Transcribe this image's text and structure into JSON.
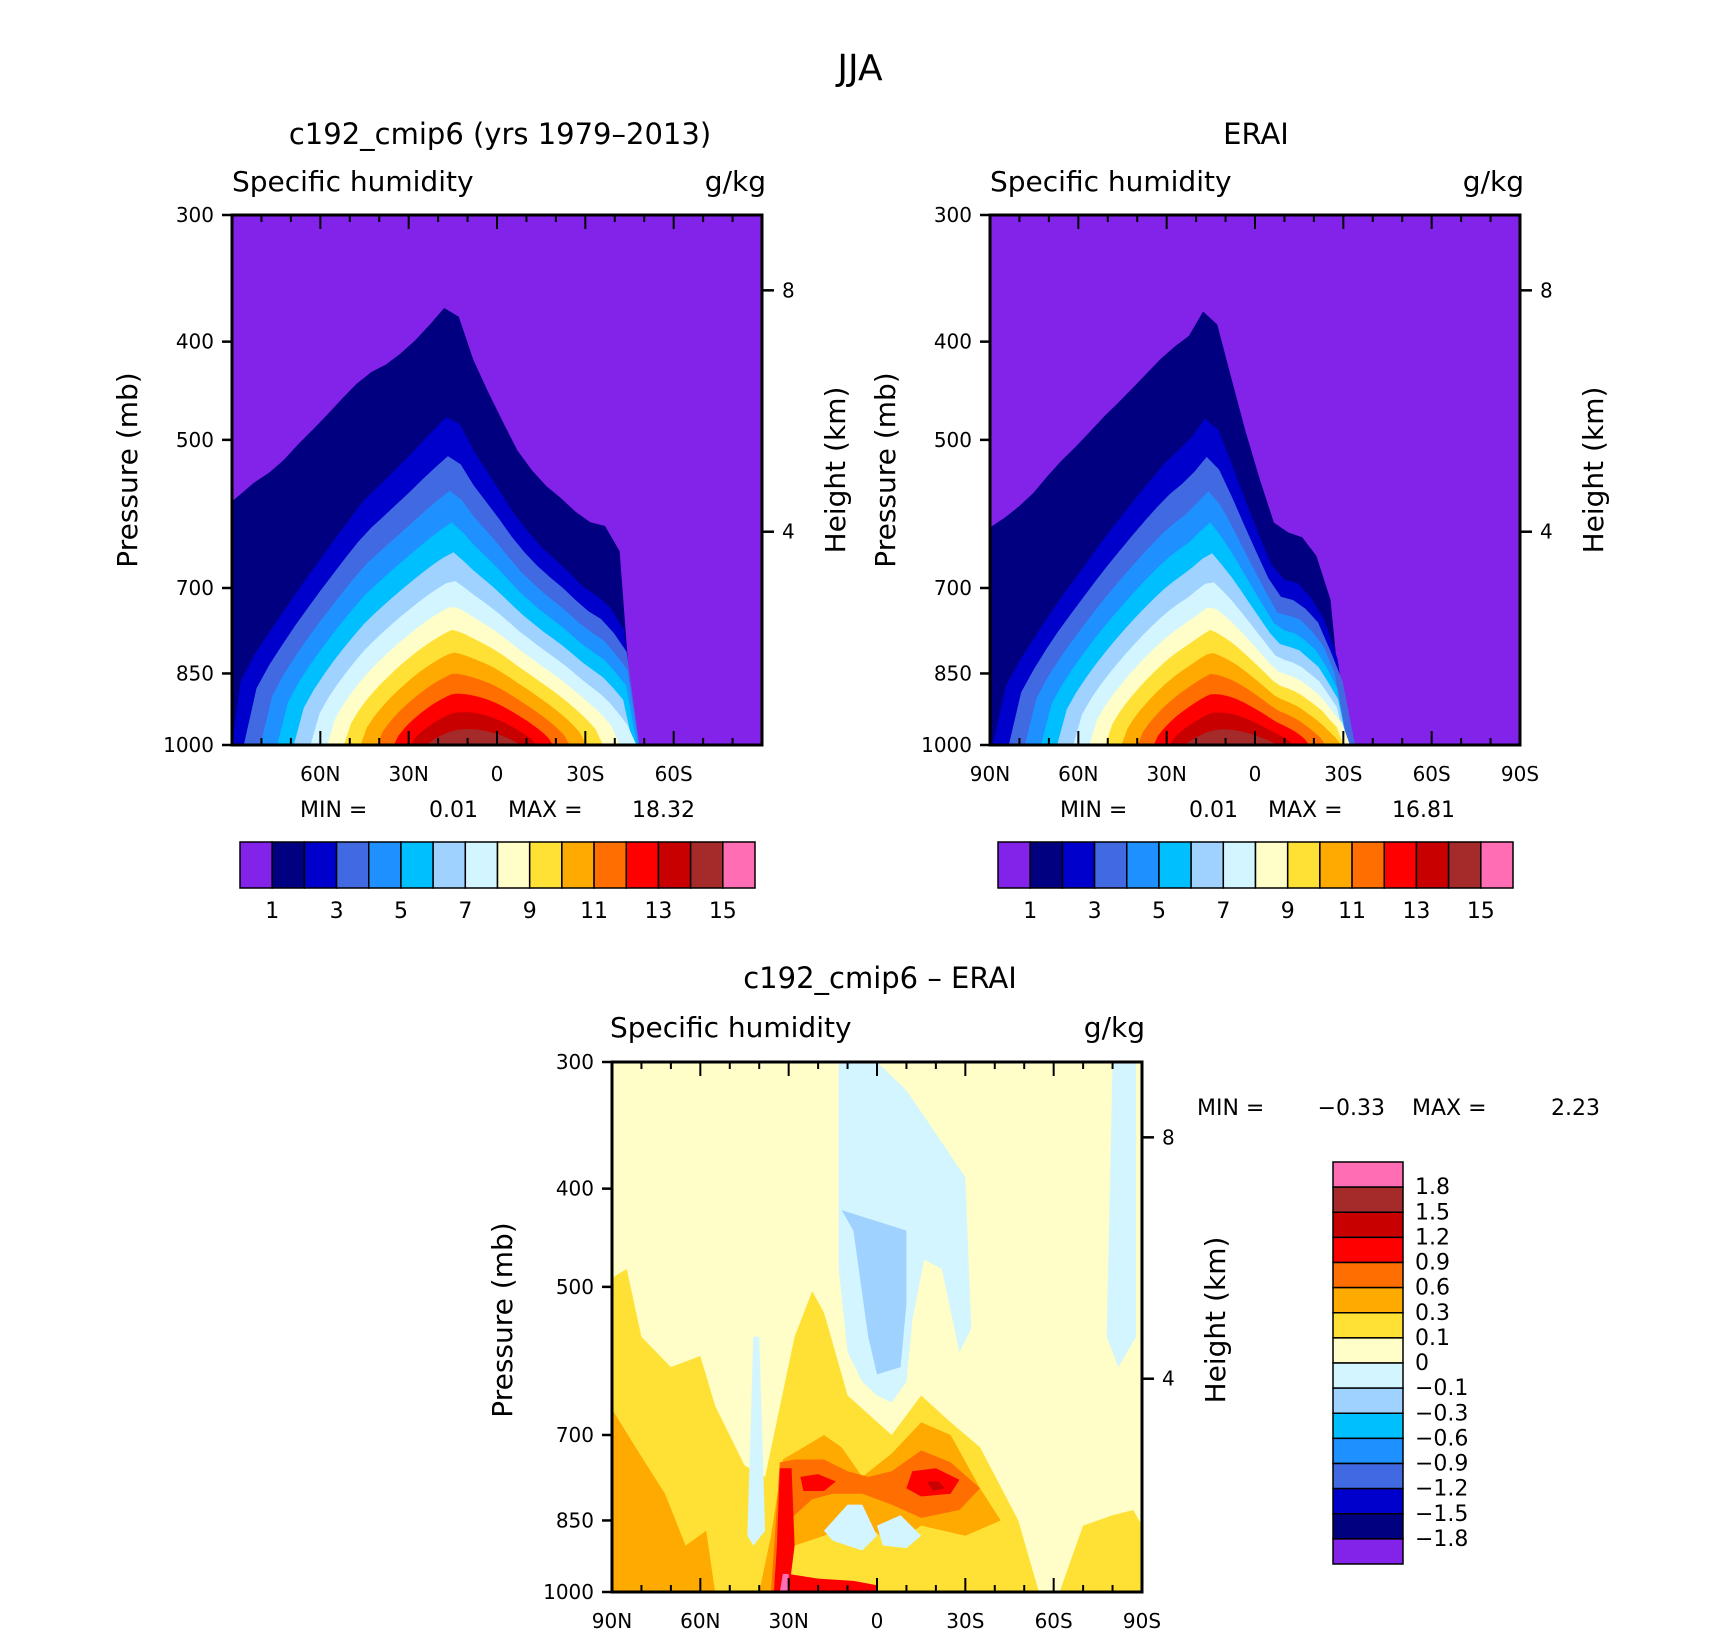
{
  "figure_title": "JJA",
  "chart_data": [
    {
      "id": "model",
      "type": "heatmap",
      "title": "c192_cmip6 (yrs 1979–2013)",
      "left_label": "Specific humidity",
      "right_label": "g/kg",
      "ylabel": "Pressure (mb)",
      "y2label": "Height (km)",
      "yticks": [
        "300",
        "400",
        "500",
        "700",
        "850",
        "1000"
      ],
      "y2ticks": [
        "8",
        "4"
      ],
      "xticks": [
        "60N",
        "30N",
        "0",
        "30S",
        "60S"
      ],
      "xlim": [
        90,
        -90
      ],
      "ylim": [
        1000,
        300
      ],
      "min_text": "MIN =",
      "min_value": "0.01",
      "max_text": "MAX =",
      "max_value": "18.32",
      "levels": [
        1,
        2,
        3,
        4,
        5,
        6,
        7,
        8,
        9,
        10,
        11,
        12,
        13,
        14,
        15
      ],
      "colorbar_labels": [
        "1",
        "3",
        "5",
        "7",
        "9",
        "11",
        "13",
        "15"
      ],
      "colors": [
        "#8322e8",
        "#000080",
        "#0000cd",
        "#4169e1",
        "#1e90ff",
        "#00bfff",
        "#a0d2ff",
        "#d2f5ff",
        "#fffdc8",
        "#ffe136",
        "#ffaa00",
        "#ff6e00",
        "#ff0000",
        "#c80000",
        "#a52a2a",
        "#ff6eb4"
      ],
      "contour_top_mb": [
        575,
        551,
        533,
        505,
        480,
        455,
        432,
        421,
        405,
        384,
        362,
        421,
        467,
        516,
        550,
        573,
        601,
        609,
        672,
        1000,
        1000,
        1000,
        1000,
        1000,
        1000
      ],
      "width_scale": [
        1,
        1,
        1,
        1,
        1,
        1,
        1,
        1,
        1,
        1,
        1,
        1,
        1,
        1,
        1
      ]
    },
    {
      "id": "obs",
      "type": "heatmap",
      "title": "ERAI",
      "left_label": "Specific humidity",
      "right_label": "g/kg",
      "ylabel": "Pressure (mb)",
      "y2label": "Height (km)",
      "yticks": [
        "300",
        "400",
        "500",
        "700",
        "850",
        "1000"
      ],
      "y2ticks": [
        "8",
        "4"
      ],
      "xticks": [
        "90N",
        "60N",
        "30N",
        "0",
        "30S",
        "60S",
        "90S"
      ],
      "xlim": [
        90,
        -90
      ],
      "ylim": [
        1000,
        300
      ],
      "min_text": "MIN =",
      "min_value": "0.01",
      "max_text": "MAX =",
      "max_value": "16.81",
      "levels": [
        1,
        2,
        3,
        4,
        5,
        6,
        7,
        8,
        9,
        10,
        11,
        12,
        13,
        14,
        15
      ],
      "colorbar_labels": [
        "1",
        "3",
        "5",
        "7",
        "9",
        "11",
        "13",
        "15"
      ],
      "colors": [
        "#8322e8",
        "#000080",
        "#0000cd",
        "#4169e1",
        "#1e90ff",
        "#00bfff",
        "#a0d2ff",
        "#d2f5ff",
        "#fffdc8",
        "#ffe136",
        "#ffaa00",
        "#ff6e00",
        "#ff0000",
        "#c80000",
        "#a52a2a",
        "#ff6eb4"
      ],
      "contour_top_mb": [
        610,
        590,
        563,
        530,
        505,
        478,
        455,
        432,
        410,
        395,
        362,
        440,
        528,
        616,
        618,
        660,
        800,
        1000,
        1000,
        1000,
        1000,
        1000,
        1000,
        1000,
        1000
      ],
      "width_scale": [
        1,
        1,
        1,
        1,
        1,
        1,
        1,
        1,
        1,
        1,
        1,
        1,
        1,
        1,
        1
      ]
    },
    {
      "id": "diff",
      "type": "heatmap",
      "title": "c192_cmip6 – ERAI",
      "left_label": "Specific humidity",
      "right_label": "g/kg",
      "ylabel": "Pressure (mb)",
      "y2label": "Height (km)",
      "yticks": [
        "300",
        "400",
        "500",
        "700",
        "850",
        "1000"
      ],
      "y2ticks": [
        "8",
        "4"
      ],
      "xticks": [
        "90N",
        "60N",
        "30N",
        "0",
        "30S",
        "60S",
        "90S"
      ],
      "xlim": [
        90,
        -90
      ],
      "ylim": [
        1000,
        300
      ],
      "min_text": "MIN =",
      "min_value": "−0.33",
      "max_text": "MAX =",
      "max_value": "2.23",
      "levels": [
        -1.8,
        -1.5,
        -1.2,
        -0.9,
        -0.6,
        -0.3,
        -0.1,
        0,
        0.1,
        0.3,
        0.6,
        0.9,
        1.2,
        1.5,
        1.8
      ],
      "colorbar_labels": [
        "−1.8",
        "−1.5",
        "−1.2",
        "−0.9",
        "−0.6",
        "−0.3",
        "−0.1",
        "0",
        "0.1",
        "0.3",
        "0.6",
        "0.9",
        "1.2",
        "1.5",
        "1.8"
      ],
      "colors": [
        "#8322e8",
        "#000080",
        "#0000cd",
        "#4169e1",
        "#1e90ff",
        "#00bfff",
        "#a0d2ff",
        "#d2f5ff",
        "#fffdc8",
        "#ffe136",
        "#ffaa00",
        "#ff6e00",
        "#ff0000",
        "#c80000",
        "#a52a2a",
        "#ff6eb4"
      ]
    }
  ]
}
